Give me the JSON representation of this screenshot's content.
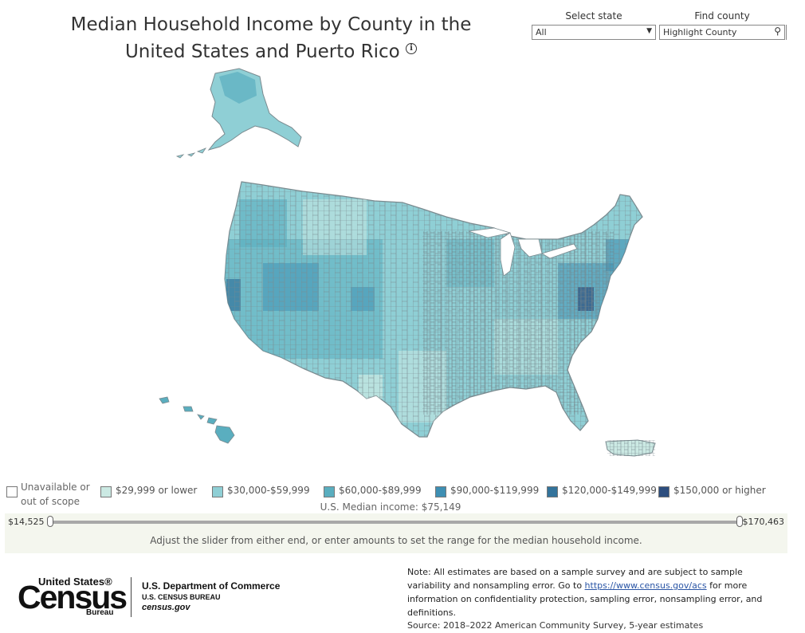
{
  "header": {
    "title_line1": "Median Household Income by County in the",
    "title_line2": "United States and Puerto Rico",
    "info_icon": "info-icon"
  },
  "controls": {
    "select_state_label": "Select state",
    "select_state_value": "All",
    "find_county_label": "Find county",
    "find_county_placeholder": "Highlight County"
  },
  "legend": {
    "unavailable": "Unavailable or out of scope",
    "unavailable_color": "#ffffff",
    "bins": [
      {
        "label": "$29,999 or lower",
        "color": "#cbe9e3"
      },
      {
        "label": "$30,000-$59,999",
        "color": "#8fcfd5"
      },
      {
        "label": "$60,000-$89,999",
        "color": "#5aaebf"
      },
      {
        "label": "$90,000-$119,999",
        "color": "#3e8fb3"
      },
      {
        "label": "$120,000-$149,999",
        "color": "#33739b"
      },
      {
        "label": "$150,000 or higher",
        "color": "#2d4e7e"
      }
    ]
  },
  "median_income": "U.S. Median income: $75,149",
  "slider": {
    "min_label": "$14,525",
    "max_label": "$170,463",
    "hint": "Adjust the slider from either end, or enter amounts to set the range for the median household income."
  },
  "footer": {
    "logo_top": "United States®",
    "logo_main": "Census",
    "logo_bottom": "Bureau",
    "dept_line1": "U.S. Department of Commerce",
    "dept_line2": "U.S. CENSUS BUREAU",
    "dept_line3": "census.gov",
    "note_before_link": "Note: All estimates are based on a sample survey and are subject to sample variability and nonsampling error. Go to ",
    "note_link": "https://www.census.gov/acs",
    "note_after_link": " for more information on confidentiality protection, sampling error, nonsampling error, and definitions.",
    "source": "Source: 2018–2022 American Community Survey, 5-year estimates"
  }
}
